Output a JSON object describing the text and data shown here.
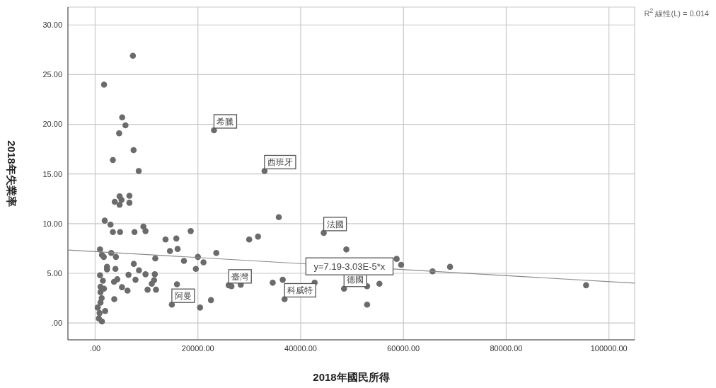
{
  "chart_data": {
    "type": "scatter",
    "xlabel": "2018年國民所得",
    "ylabel": "2018年失業率",
    "xlim": [
      -5300,
      105000
    ],
    "ylim": [
      -1.7,
      31.8
    ],
    "xticks": [
      {
        "value": 0,
        "label": ".00"
      },
      {
        "value": 20000,
        "label": "20000.00"
      },
      {
        "value": 40000,
        "label": "40000.00"
      },
      {
        "value": 60000,
        "label": "60000.00"
      },
      {
        "value": 80000,
        "label": "80000.00"
      },
      {
        "value": 100000,
        "label": "100000.00"
      }
    ],
    "yticks": [
      {
        "value": 0,
        "label": ".00"
      },
      {
        "value": 5,
        "label": "5.00"
      },
      {
        "value": 10,
        "label": "10.00"
      },
      {
        "value": 15,
        "label": "15.00"
      },
      {
        "value": 20,
        "label": "20.00"
      },
      {
        "value": 25,
        "label": "25.00"
      },
      {
        "value": 30,
        "label": "30.00"
      }
    ],
    "grid": true,
    "legend": false,
    "marker": "circle",
    "series": [
      {
        "color": "#6b6b6b",
        "x": [
          7350,
          1730,
          5260,
          5900,
          4670,
          7480,
          3450,
          8480,
          23130,
          4760,
          6670,
          3810,
          5130,
          4760,
          6670,
          1860,
          2990,
          3450,
          4850,
          7660,
          9390,
          9800,
          18600,
          13700,
          15800,
          14560,
          16050,
          950,
          1320,
          1680,
          3130,
          4040,
          11700,
          7520,
          2310,
          2310,
          3950,
          8530,
          17280,
          20000,
          21090,
          19600,
          23580,
          29980,
          6490,
          7850,
          9800,
          11610,
          11470,
          11020,
          10200,
          11840,
          5220,
          6300,
          3670,
          4310,
          3720,
          950,
          1500,
          1040,
          1720,
          1040,
          1270,
          1040,
          500,
          1950,
          860,
          720,
          1320,
          15920,
          14930,
          20410,
          22540,
          25990,
          26530,
          28340,
          32970,
          35740,
          31700,
          44490,
          48890,
          58680,
          59550,
          34560,
          36510,
          36870,
          42720,
          48440,
          52930,
          55330,
          52930,
          65670,
          69070,
          95550
        ],
        "values": [
          26.9,
          24.0,
          20.7,
          19.9,
          19.1,
          17.4,
          16.4,
          15.3,
          19.4,
          12.75,
          12.8,
          12.2,
          12.4,
          11.9,
          12.1,
          10.3,
          9.9,
          9.15,
          9.15,
          9.15,
          9.7,
          9.25,
          9.25,
          8.4,
          8.5,
          7.25,
          7.45,
          7.4,
          6.85,
          6.65,
          7.05,
          6.65,
          6.5,
          5.95,
          5.65,
          5.4,
          5.45,
          5.3,
          6.25,
          6.65,
          6.1,
          5.45,
          7.05,
          8.4,
          4.85,
          4.35,
          4.9,
          4.9,
          4.3,
          3.95,
          3.35,
          3.35,
          3.6,
          3.25,
          4.15,
          4.4,
          2.4,
          4.8,
          4.25,
          3.65,
          3.45,
          3.1,
          2.5,
          2.05,
          1.55,
          1.2,
          1.0,
          0.45,
          0.15,
          3.9,
          1.85,
          1.55,
          2.3,
          3.8,
          3.7,
          3.85,
          15.3,
          10.65,
          8.7,
          9.07,
          7.4,
          6.45,
          5.85,
          4.05,
          4.35,
          2.4,
          4.05,
          3.45,
          3.7,
          3.95,
          1.85,
          5.2,
          5.65,
          3.8
        ]
      },
      {
        "type": "line",
        "color": "#8a8a8a",
        "marker": "none",
        "x": [
          -5300,
          105000
        ],
        "values": [
          7.35,
          4.01
        ]
      }
    ],
    "annotations": [
      {
        "text": "希臘",
        "x": 23130,
        "y": 19.4
      },
      {
        "text": "西班牙",
        "x": 32970,
        "y": 15.3
      },
      {
        "text": "法國",
        "x": 44490,
        "y": 9.07
      },
      {
        "text": "臺灣",
        "x": 25990,
        "y": 3.8
      },
      {
        "text": "阿曼",
        "x": 14930,
        "y": 1.85
      },
      {
        "text": "科威特",
        "x": 36870,
        "y": 2.4
      },
      {
        "text": "德國",
        "x": 48440,
        "y": 3.45
      },
      {
        "text": "y=7.19-3.03E-5*x",
        "x": 49500,
        "y": 5.7
      },
      "R$^{2}$ 線性(L) = 0.014"
    ]
  }
}
